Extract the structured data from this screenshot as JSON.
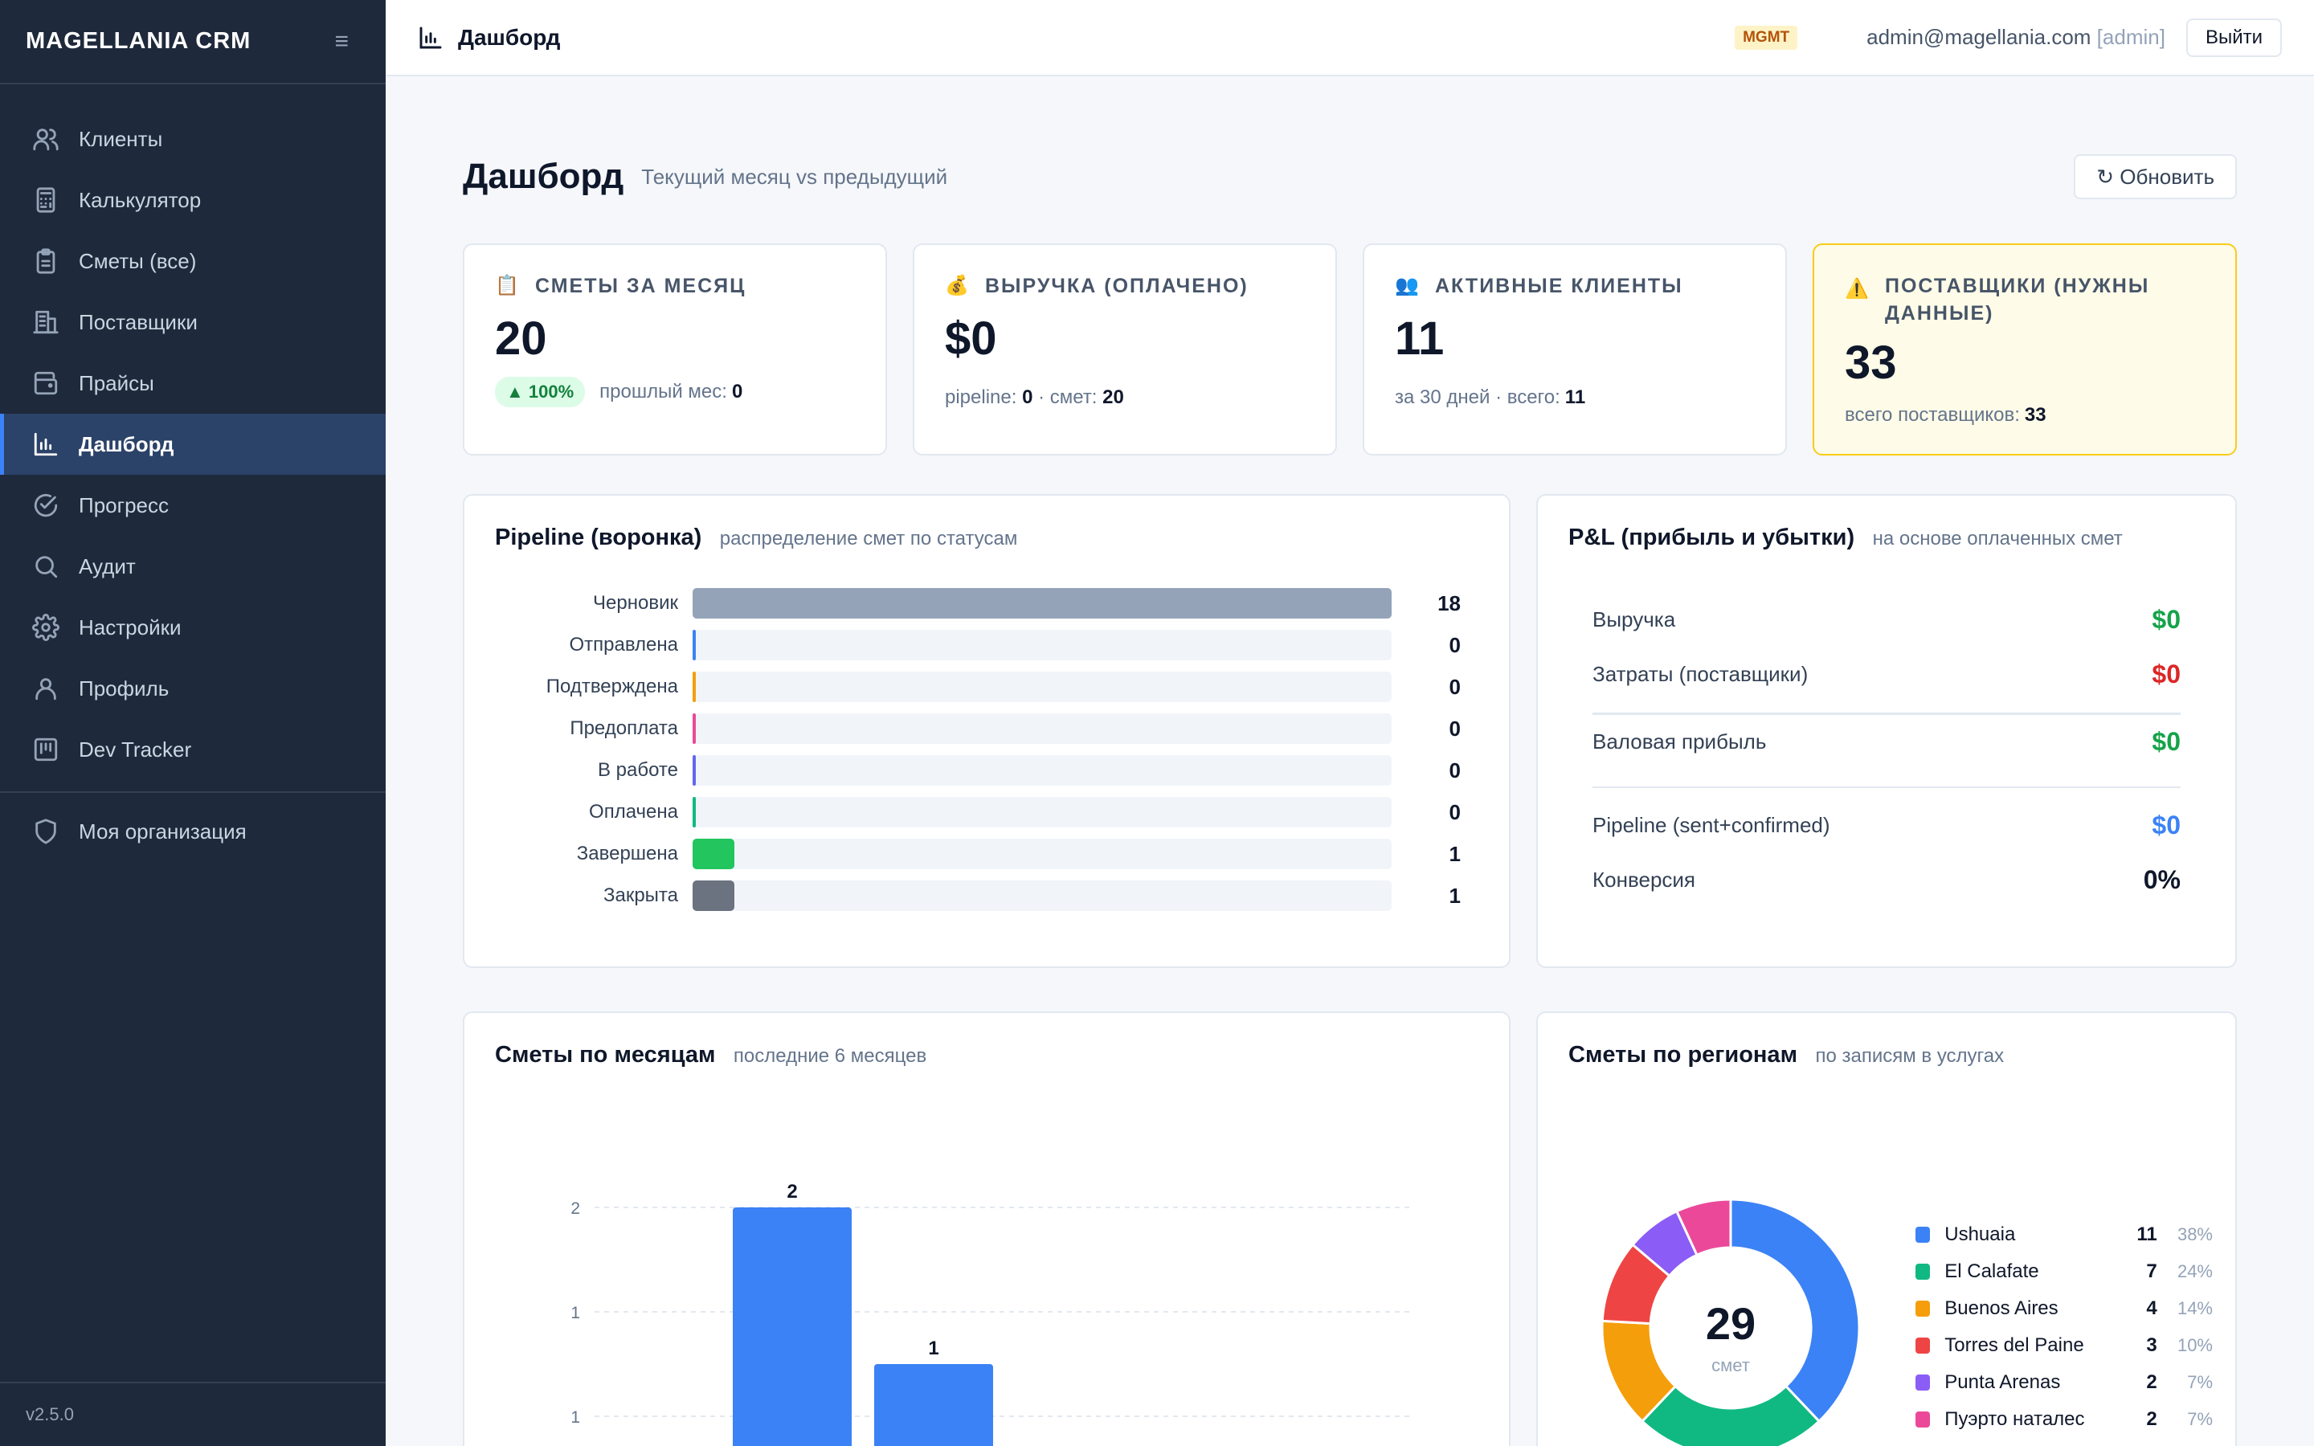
{
  "app": {
    "brand": "MAGELLANIA CRM",
    "version": "v2.5.0"
  },
  "sidebar": {
    "items": [
      {
        "label": "Клиенты",
        "icon": "users-icon"
      },
      {
        "label": "Калькулятор",
        "icon": "calculator-icon"
      },
      {
        "label": "Сметы (все)",
        "icon": "clipboard-icon"
      },
      {
        "label": "Поставщики",
        "icon": "building-icon"
      },
      {
        "label": "Прайсы",
        "icon": "wallet-icon"
      },
      {
        "label": "Дашборд",
        "icon": "bar-chart-icon",
        "active": true
      },
      {
        "label": "Прогресс",
        "icon": "check-circle-icon"
      },
      {
        "label": "Аудит",
        "icon": "search-icon"
      },
      {
        "label": "Настройки",
        "icon": "gear-icon"
      },
      {
        "label": "Профиль",
        "icon": "user-icon"
      },
      {
        "label": "Dev Tracker",
        "icon": "kanban-icon"
      }
    ],
    "org": {
      "label": "Моя организация",
      "icon": "shield-icon"
    }
  },
  "topbar": {
    "title": "Дашборд",
    "badge": "MGMT",
    "user_email": "admin@magellania.com",
    "user_role": "[admin]",
    "logout": "Выйти"
  },
  "page": {
    "title": "Дашборд",
    "subtitle": "Текущий месяц vs предыдущий",
    "refresh": "↻ Обновить"
  },
  "kpis": [
    {
      "emoji": "📋",
      "label": "СМЕТЫ ЗА МЕСЯЦ",
      "value": "20",
      "delta": "▲ 100%",
      "foot_text": "прошлый мес:",
      "foot_value": "0"
    },
    {
      "emoji": "💰",
      "label": "ВЫРУЧКА (ОПЛАЧЕНО)",
      "value": "$0",
      "foot_text": "pipeline: ",
      "foot_value": "0",
      "foot_text2": " · смет: ",
      "foot_value2": "20"
    },
    {
      "emoji": "👥",
      "label": "АКТИВНЫЕ КЛИЕНТЫ",
      "value": "11",
      "foot_text": "за 30 дней · всего:",
      "foot_value": "11"
    },
    {
      "emoji": "⚠️",
      "label": "ПОСТАВЩИКИ (НУЖНЫ ДАННЫЕ)",
      "value": "33",
      "foot_text": "всего поставщиков:",
      "foot_value": "33"
    }
  ],
  "pipeline": {
    "title": "Pipeline (воронка)",
    "subtitle": "распределение смет по статусам",
    "max": 18,
    "rows": [
      {
        "label": "Черновик",
        "value": 18,
        "color": "#94a3b8"
      },
      {
        "label": "Отправлена",
        "value": 0,
        "color": "#3b82f6"
      },
      {
        "label": "Подтверждена",
        "value": 0,
        "color": "#f59e0b"
      },
      {
        "label": "Предоплата",
        "value": 0,
        "color": "#ec4899"
      },
      {
        "label": "В работе",
        "value": 0,
        "color": "#6366f1"
      },
      {
        "label": "Оплачена",
        "value": 0,
        "color": "#10b981"
      },
      {
        "label": "Завершена",
        "value": 1,
        "color": "#22c55e"
      },
      {
        "label": "Закрыта",
        "value": 1,
        "color": "#6b7280"
      }
    ]
  },
  "pnl": {
    "title": "P&L (прибыль и убытки)",
    "subtitle": "на основе оплаченных смет",
    "rows": [
      {
        "label": "Выручка",
        "value": "$0",
        "color": "#16a34a"
      },
      {
        "label": "Затраты (поставщики)",
        "value": "$0",
        "color": "#dc2626"
      },
      {
        "label": "Валовая прибыль",
        "value": "$0",
        "color": "#16a34a"
      },
      {
        "label": "Pipeline (sent+confirmed)",
        "value": "$0",
        "color": "#3b82f6"
      },
      {
        "label": "Конверсия",
        "value": "0%",
        "color": "#0f172a"
      }
    ]
  },
  "monthly": {
    "title": "Сметы по месяцам",
    "subtitle": "последние 6 месяцев"
  },
  "regions": {
    "title": "Сметы по регионам",
    "subtitle": "по записям в услугах",
    "total": "29",
    "total_label": "смет"
  },
  "chart_data": [
    {
      "type": "bar",
      "title": "Сметы по месяцам",
      "values": [
        2,
        1
      ],
      "value_labels": [
        "2",
        "1"
      ],
      "y_tick_labels": [
        "2",
        "1",
        "1"
      ],
      "ylim": [
        0,
        2
      ],
      "grid": true,
      "color": "#3b82f6"
    },
    {
      "type": "pie",
      "title": "Сметы по регионам",
      "donut": true,
      "center_value": "29",
      "center_label": "смет",
      "legend_position": "right",
      "slices": [
        {
          "name": "Ushuaia",
          "value": 11,
          "pct": "38%",
          "color": "#3b82f6"
        },
        {
          "name": "El Calafate",
          "value": 7,
          "pct": "24%",
          "color": "#10b981"
        },
        {
          "name": "Buenos Aires",
          "value": 4,
          "pct": "14%",
          "color": "#f59e0b"
        },
        {
          "name": "Torres del Paine",
          "value": 3,
          "pct": "10%",
          "color": "#ef4444"
        },
        {
          "name": "Punta Arenas",
          "value": 2,
          "pct": "7%",
          "color": "#8b5cf6"
        },
        {
          "name": "Пуэрто наталес",
          "value": 2,
          "pct": "7%",
          "color": "#ec4899"
        }
      ]
    }
  ]
}
